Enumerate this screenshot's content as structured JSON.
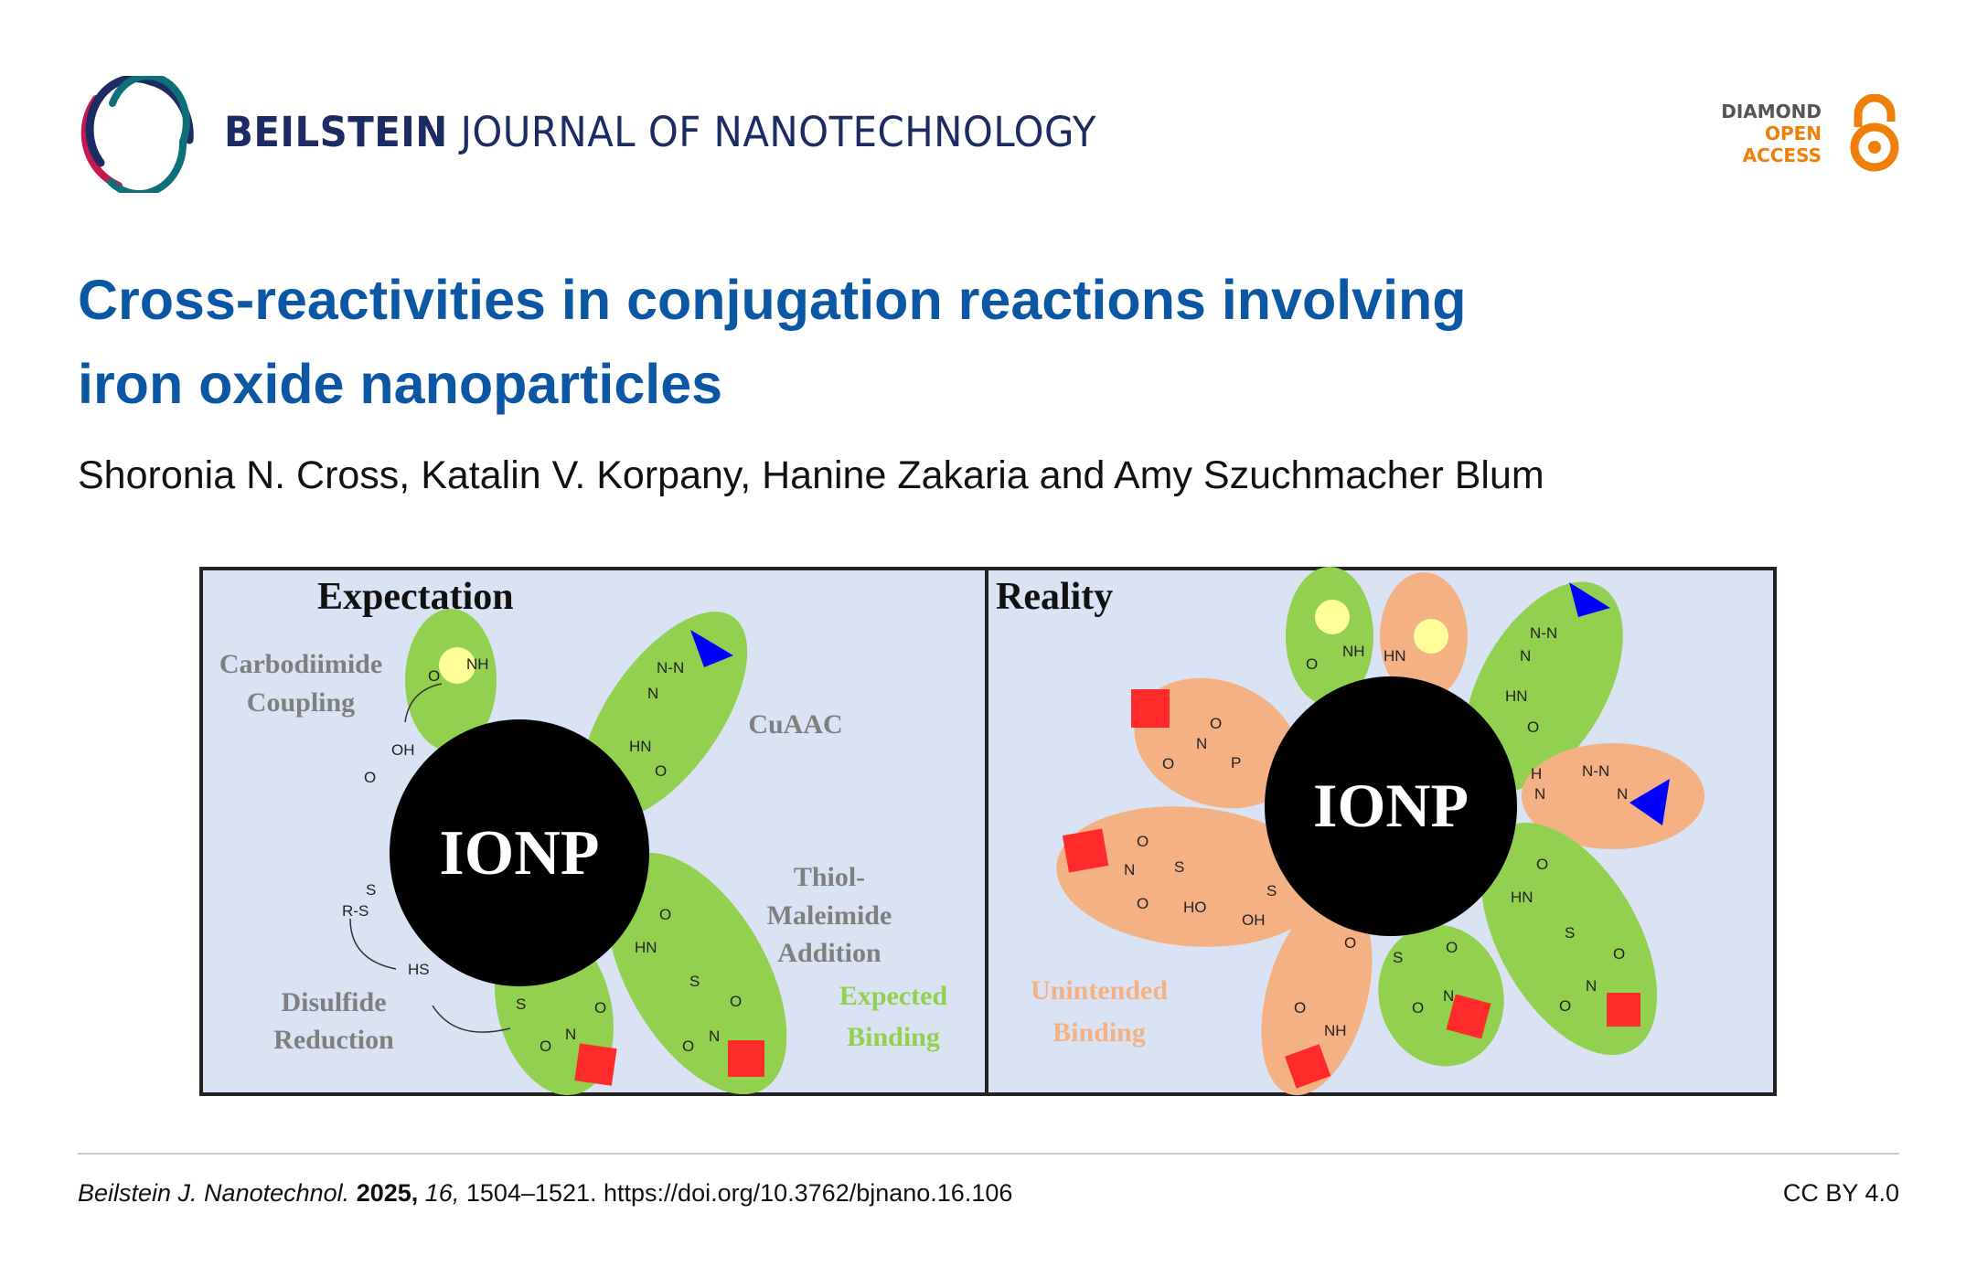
{
  "header": {
    "journal_bold": "BEILSTEIN",
    "journal_light": "JOURNAL OF NANOTECHNOLOGY",
    "open_access": {
      "line1": "DIAMOND",
      "line2": "OPEN",
      "line3": "ACCESS"
    },
    "colors": {
      "navy": "#1d2b63",
      "crimson": "#c8174f",
      "teal": "#0f6f78",
      "orange": "#f07f0a"
    }
  },
  "article": {
    "title_line1": "Cross-reactivities in conjugation reactions involving",
    "title_line2": "iron oxide nanoparticles",
    "authors": "Shoronia N. Cross, Katalin V. Korpany, Hanine Zakaria and Amy Szuchmacher Blum",
    "title_color": "#0b57a4"
  },
  "figure": {
    "left_panel": {
      "heading": "Expectation",
      "core": "IONP",
      "label_carbodiimide": [
        "Carbodiimide",
        "Coupling"
      ],
      "label_cuaac": "CuAAC",
      "label_thiol": [
        "Thiol-",
        "Maleimide",
        "Addition"
      ],
      "label_disulfide": [
        "Disulfide",
        "Reduction"
      ],
      "label_expected": [
        "Expected",
        "Binding"
      ],
      "chem_labels": [
        "NH",
        "O",
        "OH",
        "O",
        "N-N",
        "N",
        "HN",
        "O",
        "S",
        "R-S",
        "HS",
        "S",
        "O",
        "N",
        "O",
        "O",
        "HN",
        "S",
        "O",
        "N",
        "O"
      ]
    },
    "right_panel": {
      "heading": "Reality",
      "core": "IONP",
      "label_unintended": [
        "Unintended",
        "Binding"
      ],
      "chem_labels": [
        "NH",
        "O",
        "HN",
        "N-N",
        "N",
        "HN",
        "O",
        "H",
        "N",
        "N-N",
        "N",
        "O",
        "HN",
        "S",
        "O",
        "N",
        "O",
        "S",
        "O",
        "N",
        "O",
        "O",
        "O",
        "NH",
        "O",
        "N",
        "O",
        "P",
        "O",
        "N",
        "S",
        "O",
        "HO",
        "OH",
        "S"
      ]
    },
    "colors": {
      "background": "#dae3f3",
      "expected": "#92d050",
      "unintended": "#f4b183",
      "core": "#000000",
      "square": "#ff2a2a",
      "triangle": "#0000ff",
      "circle": "#ffff99",
      "label_gray": "#7f7f7f"
    }
  },
  "footer": {
    "journal_abbrev": "Beilstein J. Nanotechnol.",
    "year": "2025,",
    "volume": "16,",
    "pages": "1504–1521.",
    "doi": "https://doi.org/10.3762/bjnano.16.106",
    "license": "CC BY 4.0"
  }
}
